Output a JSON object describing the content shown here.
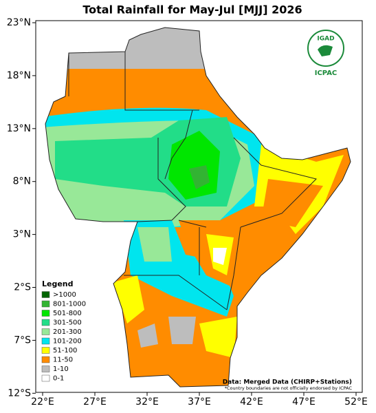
{
  "title": "Total Rainfall for May-Jul [MJJ] 2026",
  "lat_ticks": [
    "23°N",
    "18°N",
    "13°N",
    "8°N",
    "3°N",
    "2°S",
    "7°S",
    "12°S"
  ],
  "lon_ticks": [
    "22°E",
    "27°E",
    "32°E",
    "37°E",
    "42°E",
    "47°E",
    "52°E"
  ],
  "legend": {
    "title": "Legend",
    "items": [
      {
        "label": ">1000",
        "color": "#006400"
      },
      {
        "label": "801-1000",
        "color": "#32b432"
      },
      {
        "label": "501-800",
        "color": "#00e600"
      },
      {
        "label": "301-500",
        "color": "#22dd88"
      },
      {
        "label": "201-300",
        "color": "#98e898"
      },
      {
        "label": "101-200",
        "color": "#00e5ee"
      },
      {
        "label": "51-100",
        "color": "#ffff00"
      },
      {
        "label": "11-50",
        "color": "#ff8c00"
      },
      {
        "label": "1-10",
        "color": "#bdbdbd"
      },
      {
        "label": "0-1",
        "color": "#ffffff"
      }
    ]
  },
  "logo": {
    "top": "IGAD",
    "bottom": "ICPAC"
  },
  "source": "Data: Merged Data (CHIRP+Stations)",
  "disclaimer": "*Country boundaries are not officially endorsed by ICPAC"
}
